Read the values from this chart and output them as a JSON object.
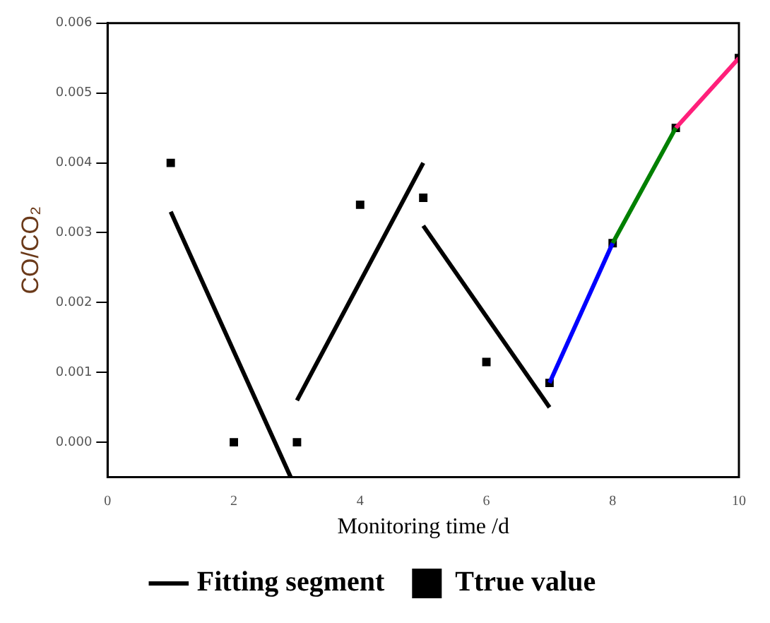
{
  "chart_data": {
    "type": "scatter",
    "xlabel": "Monitoring time /d",
    "ylabel": "CO/CO₂",
    "xlim": [
      0,
      10
    ],
    "xticks": [
      0,
      2,
      4,
      6,
      8,
      10
    ],
    "ylim": [
      -0.0005,
      0.006
    ],
    "yticks": [
      {
        "value": 0,
        "label": "0.000"
      },
      {
        "value": 0.001,
        "label": "0.001"
      },
      {
        "value": 0.002,
        "label": "0.002"
      },
      {
        "value": 0.003,
        "label": "0.003"
      },
      {
        "value": 0.004,
        "label": "0.004"
      },
      {
        "value": 0.005,
        "label": "0.005"
      },
      {
        "value": 0.006,
        "label": "0.006"
      }
    ],
    "grid": false,
    "legend": "bottom",
    "series": [
      {
        "name": "Fitting segment",
        "type": "line",
        "color": "#000000",
        "x": [
          1,
          2.9
        ],
        "values": [
          0.0033,
          -0.0005
        ]
      },
      {
        "type": "line",
        "color": "#000000",
        "x": [
          3,
          5
        ],
        "values": [
          0.0006,
          0.004
        ]
      },
      {
        "type": "line",
        "color": "#000000",
        "x": [
          5,
          7
        ],
        "values": [
          0.0031,
          0.0005
        ]
      },
      {
        "type": "line",
        "color": "#0000ff",
        "x": [
          7,
          8
        ],
        "values": [
          0.00085,
          0.00285
        ]
      },
      {
        "type": "line",
        "color": "#008000",
        "x": [
          8,
          9
        ],
        "values": [
          0.00285,
          0.0045
        ]
      },
      {
        "type": "line",
        "color": "#ff1f7a",
        "x": [
          9,
          10
        ],
        "values": [
          0.0045,
          0.0055
        ]
      },
      {
        "name": "Ttrue value",
        "type": "scatter",
        "marker": "square",
        "color": "#000000",
        "x": [
          1,
          2,
          3,
          4,
          5,
          6,
          7,
          8,
          9,
          10
        ],
        "values": [
          0.004,
          0,
          0,
          0.0034,
          0.0035,
          0.00115,
          0.00085,
          0.00285,
          0.0045,
          0.0055
        ]
      }
    ]
  }
}
